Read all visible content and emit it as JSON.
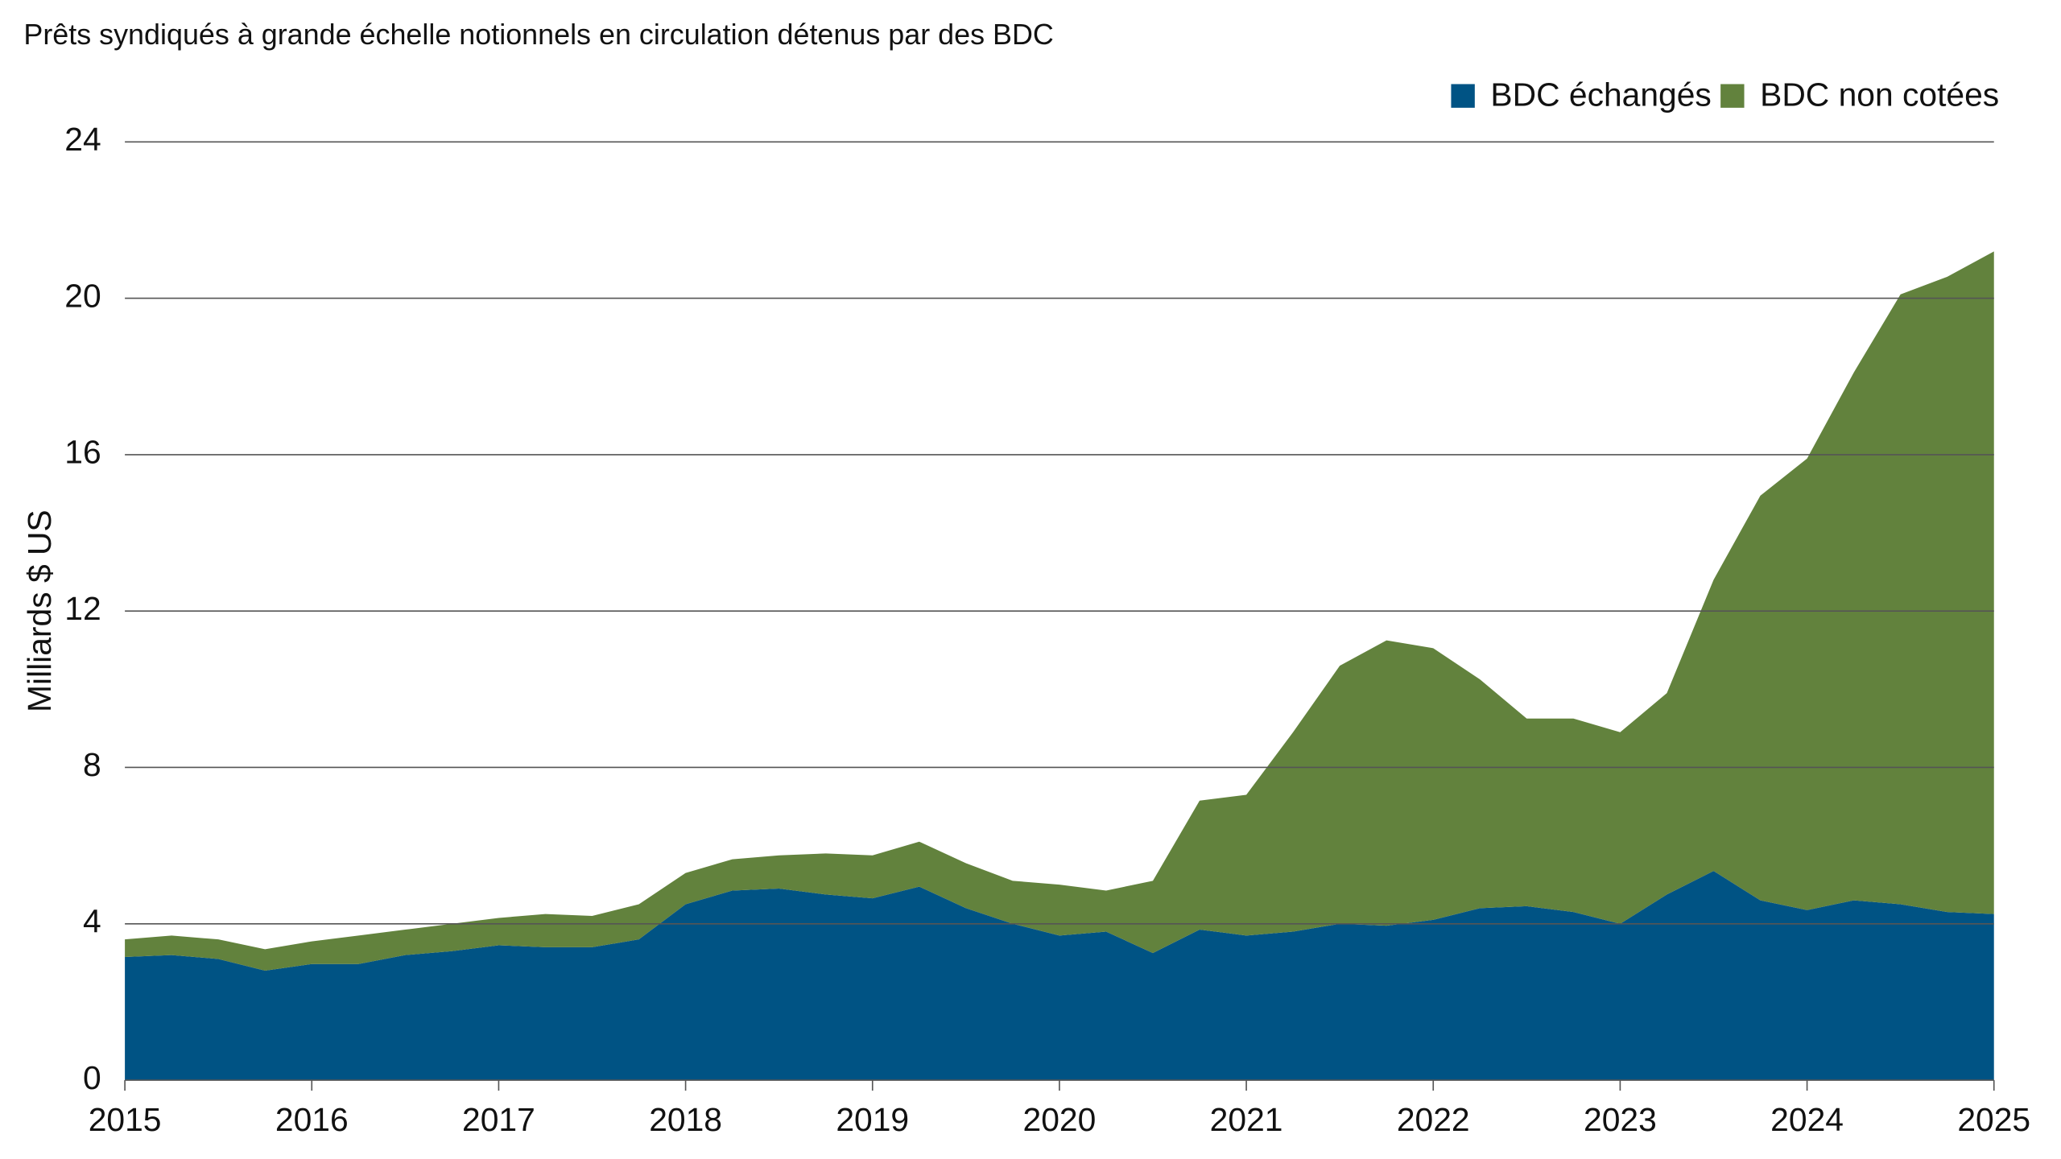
{
  "chart_data": {
    "type": "stacked_area",
    "title": "Prêts syndiqués à grande échelle notionnels en circulation détenus par des BDC",
    "y_label": "Milliards $ US",
    "x": [
      2015,
      2015.25,
      2015.5,
      2015.75,
      2016,
      2016.25,
      2016.5,
      2016.75,
      2017,
      2017.25,
      2017.5,
      2017.75,
      2018,
      2018.25,
      2018.5,
      2018.75,
      2019,
      2019.25,
      2019.5,
      2019.75,
      2020,
      2020.25,
      2020.5,
      2020.75,
      2021,
      2021.25,
      2021.5,
      2021.75,
      2022,
      2022.25,
      2022.5,
      2022.75,
      2023,
      2023.25,
      2023.5,
      2023.75,
      2024,
      2024.25,
      2024.5,
      2024.75,
      2025
    ],
    "series": [
      {
        "name": "BDC échangés",
        "color": "#005384",
        "values": [
          3.15,
          3.2,
          3.1,
          2.8,
          2.97,
          2.97,
          3.2,
          3.3,
          3.45,
          3.4,
          3.4,
          3.6,
          4.5,
          4.85,
          4.9,
          4.75,
          4.65,
          4.95,
          4.4,
          4.0,
          3.7,
          3.8,
          3.25,
          3.85,
          3.7,
          3.8,
          4.0,
          3.95,
          4.1,
          4.4,
          4.45,
          4.3,
          4.0,
          4.75,
          5.35,
          4.6,
          4.35,
          4.6,
          4.5,
          4.3,
          4.25
        ]
      },
      {
        "name": "BDC non cotées",
        "color": "#62823d",
        "values": [
          0.45,
          0.5,
          0.5,
          0.55,
          0.58,
          0.73,
          0.65,
          0.7,
          0.7,
          0.85,
          0.8,
          0.9,
          0.8,
          0.8,
          0.85,
          1.05,
          1.1,
          1.15,
          1.15,
          1.1,
          1.3,
          1.05,
          1.85,
          3.3,
          3.6,
          5.1,
          6.6,
          7.3,
          6.95,
          5.85,
          4.8,
          4.95,
          4.9,
          5.15,
          7.45,
          10.35,
          11.55,
          13.5,
          15.6,
          16.25,
          16.95
        ]
      }
    ],
    "xlim": [
      2015,
      2025
    ],
    "xticks": [
      2015,
      2016,
      2017,
      2018,
      2019,
      2020,
      2021,
      2022,
      2023,
      2024,
      2025
    ],
    "ylim": [
      0,
      24
    ],
    "yticks": [
      0,
      4,
      8,
      12,
      16,
      20,
      24
    ],
    "grid": true,
    "legend": "top-right"
  }
}
